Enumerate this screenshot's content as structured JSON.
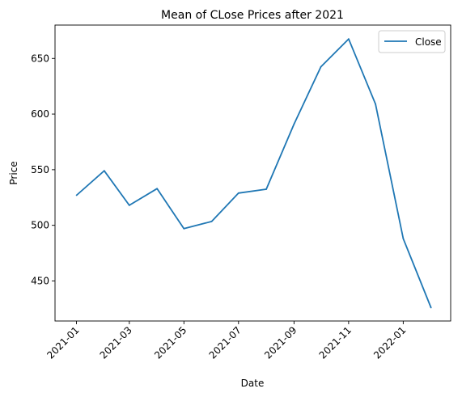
{
  "chart_data": {
    "type": "line",
    "title": "Mean of CLose Prices after 2021",
    "xlabel": "Date",
    "ylabel": "Price",
    "x": [
      "2021-01",
      "2021-02",
      "2021-03",
      "2021-04",
      "2021-05",
      "2021-06",
      "2021-07",
      "2021-08",
      "2021-09",
      "2021-10",
      "2021-11",
      "2021-12",
      "2022-01",
      "2022-02"
    ],
    "series": [
      {
        "name": "Close",
        "color": "#1f77b4",
        "values": [
          527,
          549,
          518,
          533,
          497,
          503.5,
          529,
          532.5,
          591,
          642.5,
          667.5,
          609,
          488,
          426
        ]
      }
    ],
    "x_ticks": [
      "2021-01",
      "2021-03",
      "2021-05",
      "2021-07",
      "2021-09",
      "2021-11",
      "2022-01"
    ],
    "y_ticks": [
      450,
      500,
      550,
      600,
      650
    ],
    "ylim": [
      414,
      680
    ],
    "xlim": [
      "2020-12-08",
      "2022-02-23"
    ],
    "grid": false,
    "legend_position": "top-right"
  }
}
